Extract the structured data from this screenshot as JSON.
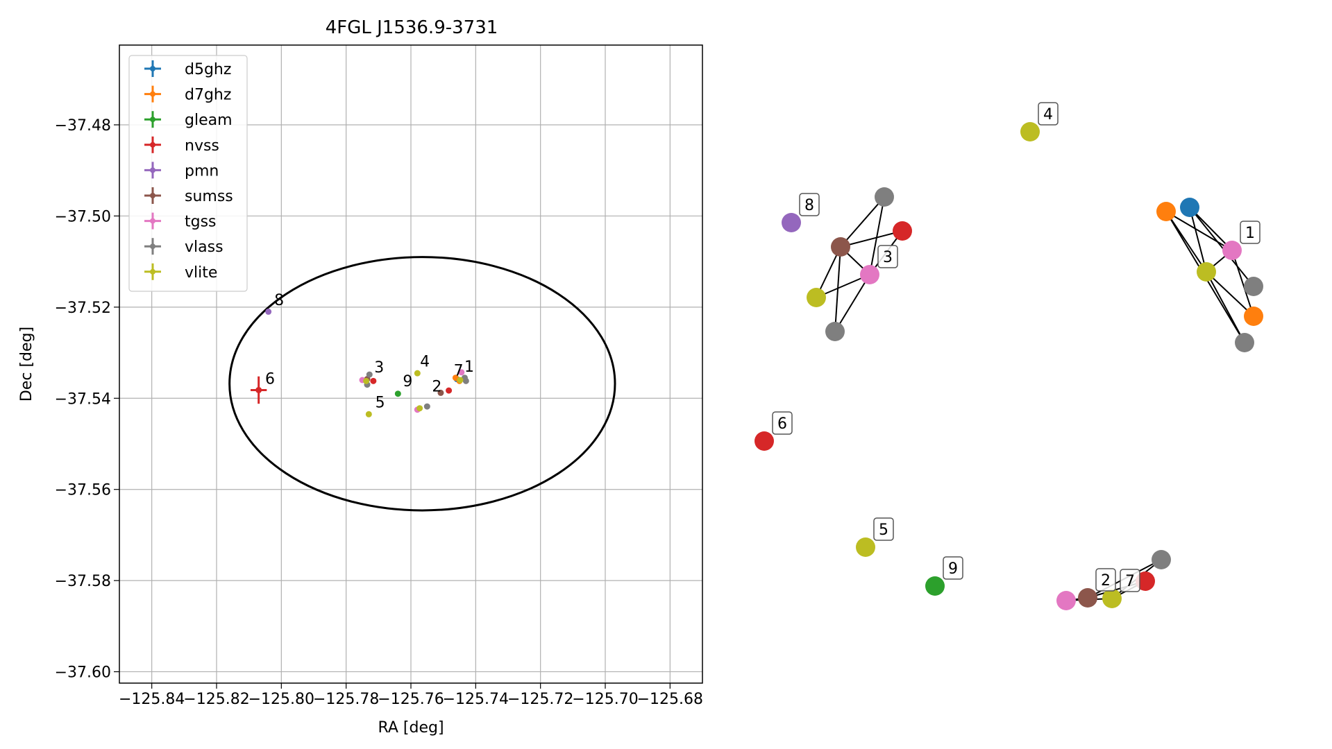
{
  "chart_data": [
    {
      "type": "scatter",
      "title": "4FGL J1536.9-3731",
      "xlabel": "RA [deg]",
      "ylabel": "Dec [deg]",
      "xlim": [
        -125.85,
        -125.67
      ],
      "ylim": [
        -37.6025,
        -37.4625
      ],
      "xticks": [
        -125.84,
        -125.82,
        -125.8,
        -125.78,
        -125.76,
        -125.74,
        -125.72,
        -125.7,
        -125.68
      ],
      "xtick_labels": [
        "−125.84",
        "−125.82",
        "−125.80",
        "−125.78",
        "−125.76",
        "−125.74",
        "−125.72",
        "−125.70",
        "−125.68"
      ],
      "yticks": [
        -37.48,
        -37.5,
        -37.52,
        -37.54,
        -37.56,
        -37.58,
        -37.6
      ],
      "ytick_labels": [
        "−37.48",
        "−37.50",
        "−37.52",
        "−37.54",
        "−37.56",
        "−37.58",
        "−37.60"
      ],
      "grid": true,
      "legend_position": "top-left",
      "ellipse": {
        "ra_center": -125.7565,
        "dec_center": -37.5368,
        "ra_radius": 0.0595,
        "dec_radius": 0.0278
      },
      "series": [
        {
          "name": "d5ghz",
          "color": "#1f77b4",
          "points": [
            {
              "x": -125.7458,
              "y": -37.5358
            }
          ]
        },
        {
          "name": "d7ghz",
          "color": "#ff7f0e",
          "points": [
            {
              "x": -125.7462,
              "y": -37.5355
            },
            {
              "x": -125.745,
              "y": -37.5362
            }
          ]
        },
        {
          "name": "gleam",
          "color": "#2ca02c",
          "points": [
            {
              "x": -125.764,
              "y": -37.539
            }
          ]
        },
        {
          "name": "nvss",
          "color": "#d62728",
          "points": [
            {
              "x": -125.807,
              "y": -37.5382,
              "xerr": 0.0025,
              "yerr": 0.003
            },
            {
              "x": -125.7716,
              "y": -37.5362
            },
            {
              "x": -125.7483,
              "y": -37.5383
            }
          ]
        },
        {
          "name": "pmn",
          "color": "#9467bd",
          "points": [
            {
              "x": -125.804,
              "y": -37.521
            }
          ]
        },
        {
          "name": "sumss",
          "color": "#8c564b",
          "points": [
            {
              "x": -125.7735,
              "y": -37.5358
            },
            {
              "x": -125.7508,
              "y": -37.5388
            }
          ]
        },
        {
          "name": "tgss",
          "color": "#e377c2",
          "points": [
            {
              "x": -125.775,
              "y": -37.536
            },
            {
              "x": -125.7444,
              "y": -37.5343
            },
            {
              "x": -125.758,
              "y": -37.5425
            }
          ]
        },
        {
          "name": "vlass",
          "color": "#7f7f7f",
          "points": [
            {
              "x": -125.7728,
              "y": -37.5348
            },
            {
              "x": -125.7735,
              "y": -37.537
            },
            {
              "x": -125.743,
              "y": -37.5362
            },
            {
              "x": -125.7434,
              "y": -37.5355
            },
            {
              "x": -125.755,
              "y": -37.5418
            }
          ]
        },
        {
          "name": "vlite",
          "color": "#bcbd22",
          "points": [
            {
              "x": -125.7738,
              "y": -37.5362
            },
            {
              "x": -125.7448,
              "y": -37.536
            },
            {
              "x": -125.758,
              "y": -37.5345
            },
            {
              "x": -125.773,
              "y": -37.5435
            },
            {
              "x": -125.7573,
              "y": -37.5422
            }
          ]
        }
      ],
      "cluster_labels": [
        {
          "text": "1",
          "x": -125.7435,
          "y": -37.5342
        },
        {
          "text": "2",
          "x": -125.7535,
          "y": -37.5385
        },
        {
          "text": "3",
          "x": -125.7713,
          "y": -37.5343
        },
        {
          "text": "4",
          "x": -125.7572,
          "y": -37.533
        },
        {
          "text": "5",
          "x": -125.771,
          "y": -37.542
        },
        {
          "text": "6",
          "x": -125.805,
          "y": -37.5368
        },
        {
          "text": "7",
          "x": -125.7468,
          "y": -37.535
        },
        {
          "text": "8",
          "x": -125.8022,
          "y": -37.5196
        },
        {
          "text": "9",
          "x": -125.7625,
          "y": -37.5374
        }
      ]
    },
    {
      "type": "network",
      "nodes": [
        {
          "id": "n4",
          "color": "#bcbd22",
          "label": "4"
        },
        {
          "id": "n8",
          "color": "#9467bd",
          "label": "8"
        },
        {
          "id": "a1",
          "color": "#7f7f7f"
        },
        {
          "id": "a2",
          "color": "#d62728"
        },
        {
          "id": "a3",
          "color": "#8c564b"
        },
        {
          "id": "a4",
          "color": "#e377c2",
          "label": "3"
        },
        {
          "id": "a5",
          "color": "#bcbd22"
        },
        {
          "id": "a6",
          "color": "#7f7f7f"
        },
        {
          "id": "b1",
          "color": "#ff7f0e"
        },
        {
          "id": "b2",
          "color": "#1f77b4"
        },
        {
          "id": "b3",
          "color": "#e377c2",
          "label": "1"
        },
        {
          "id": "b4",
          "color": "#bcbd22"
        },
        {
          "id": "b5",
          "color": "#7f7f7f"
        },
        {
          "id": "b6",
          "color": "#ff7f0e"
        },
        {
          "id": "b7",
          "color": "#7f7f7f"
        },
        {
          "id": "n6",
          "color": "#d62728",
          "label": "6"
        },
        {
          "id": "n5",
          "color": "#bcbd22",
          "label": "5"
        },
        {
          "id": "n9",
          "color": "#2ca02c",
          "label": "9"
        },
        {
          "id": "c1",
          "color": "#7f7f7f"
        },
        {
          "id": "c2",
          "color": "#d62728"
        },
        {
          "id": "c3",
          "color": "#e377c2"
        },
        {
          "id": "c4",
          "color": "#8c564b",
          "label": "2"
        },
        {
          "id": "c5",
          "color": "#bcbd22",
          "label": "7"
        }
      ],
      "edges": [
        [
          "a3",
          "a1"
        ],
        [
          "a3",
          "a2"
        ],
        [
          "a3",
          "a4"
        ],
        [
          "a3",
          "a5"
        ],
        [
          "a3",
          "a6"
        ],
        [
          "a1",
          "a4"
        ],
        [
          "a2",
          "a4"
        ],
        [
          "a4",
          "a5"
        ],
        [
          "a4",
          "a6"
        ],
        [
          "b1",
          "b3"
        ],
        [
          "b1",
          "b4"
        ],
        [
          "b1",
          "b7"
        ],
        [
          "b2",
          "b3"
        ],
        [
          "b2",
          "b4"
        ],
        [
          "b2",
          "b5"
        ],
        [
          "b3",
          "b4"
        ],
        [
          "b3",
          "b6"
        ],
        [
          "b4",
          "b6"
        ],
        [
          "b4",
          "b7"
        ],
        [
          "c3",
          "c4"
        ],
        [
          "c3",
          "c5"
        ],
        [
          "c4",
          "c2"
        ],
        [
          "c4",
          "c1"
        ],
        [
          "c5",
          "c1"
        ],
        [
          "c5",
          "c2"
        ]
      ]
    }
  ]
}
